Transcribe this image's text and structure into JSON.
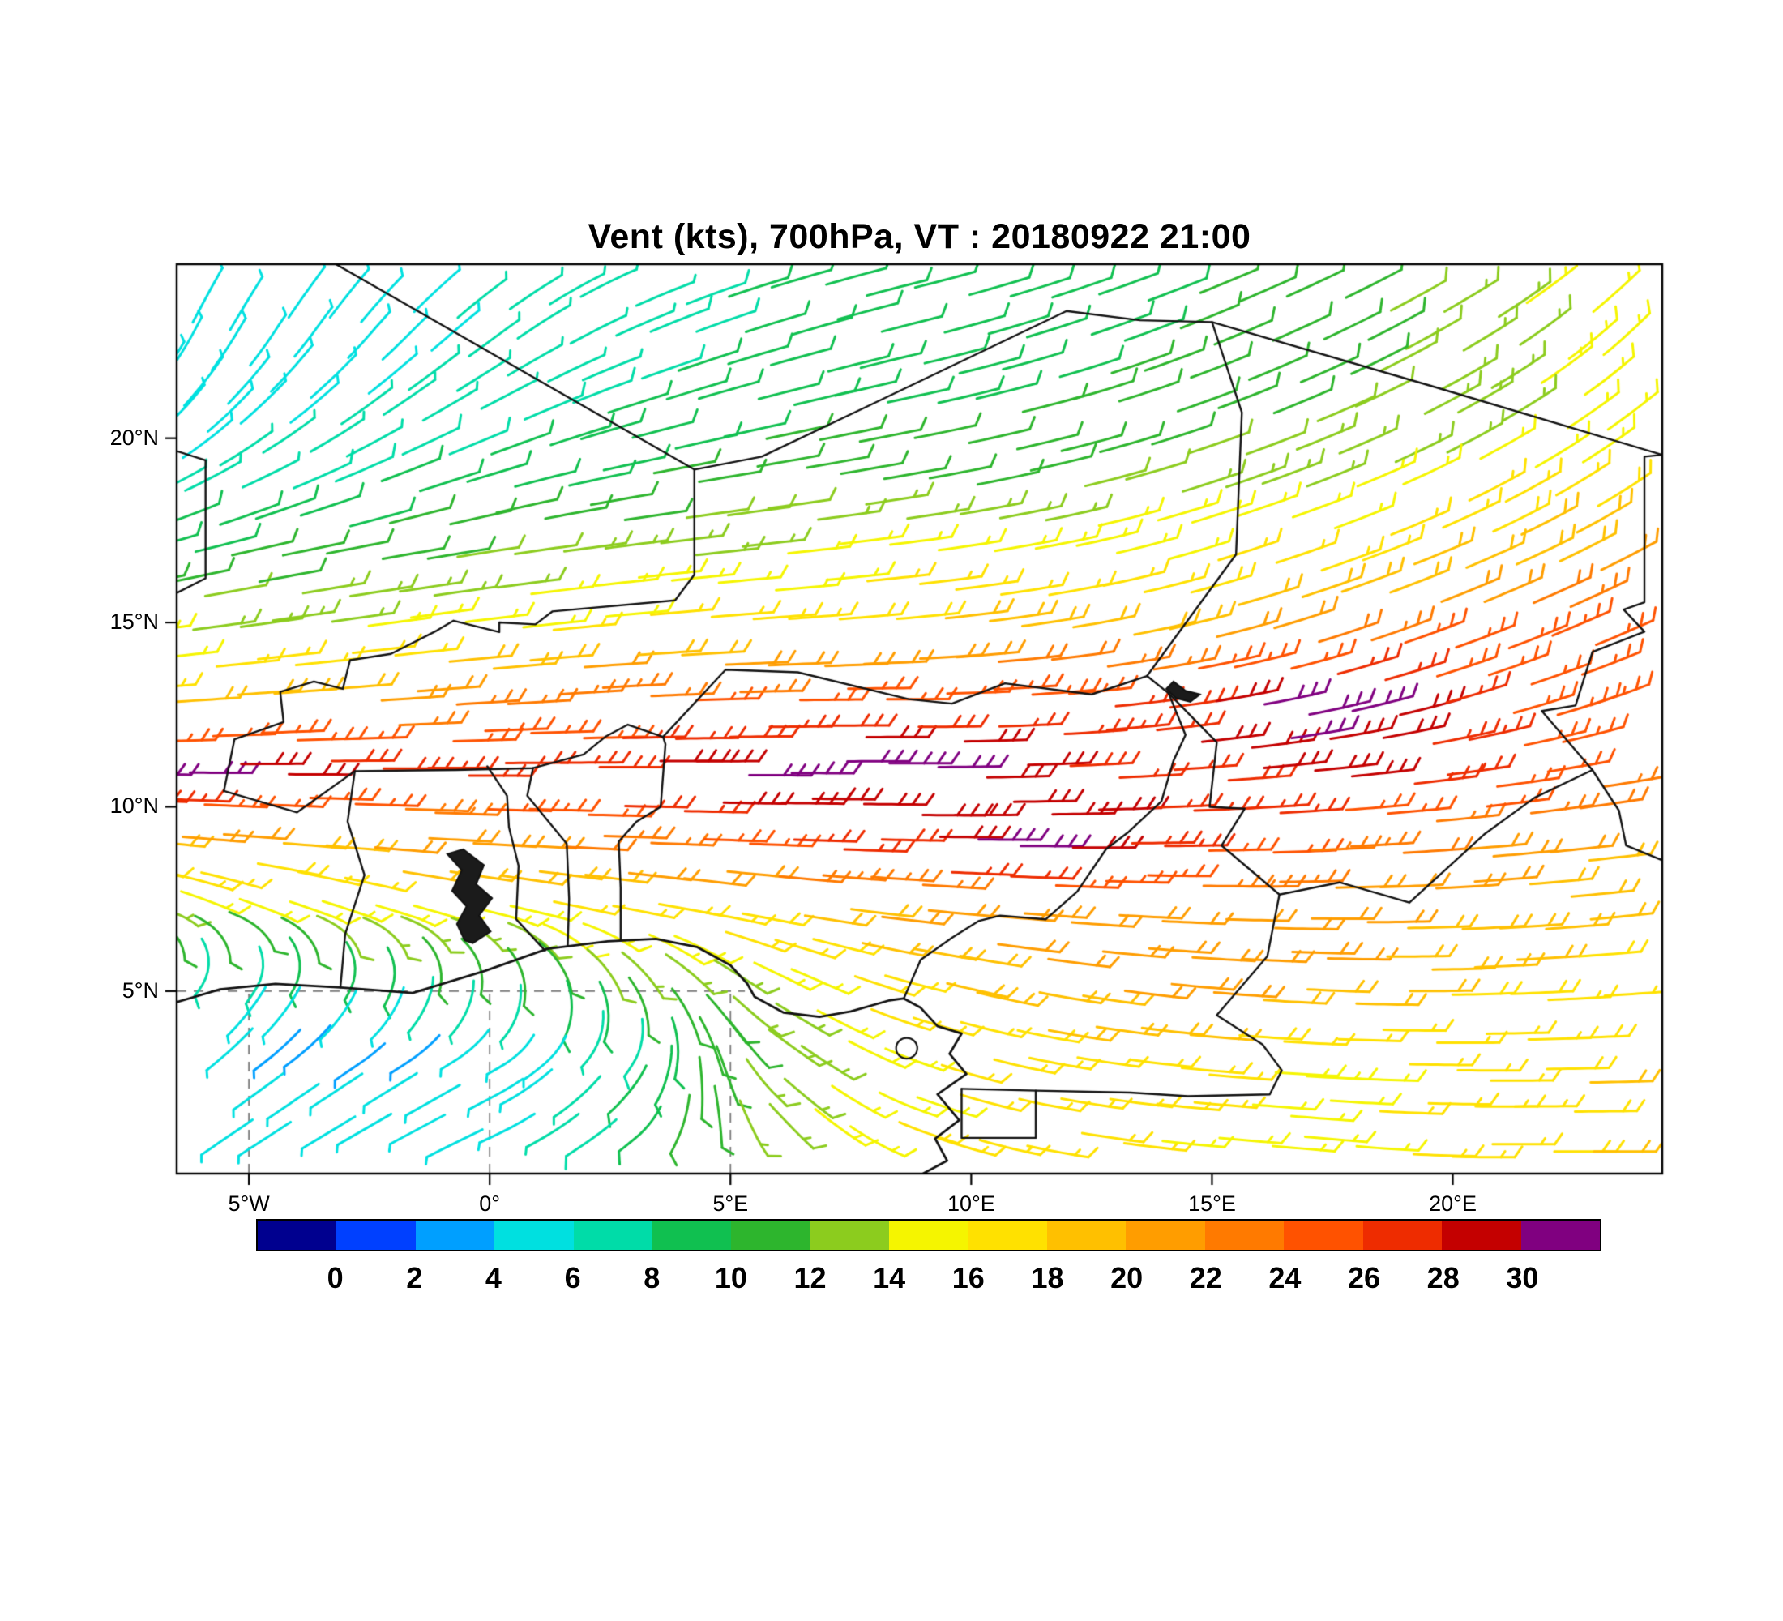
{
  "title": "Vent (kts), 700hPa, VT : 20180922  21:00",
  "chart_data": {
    "type": "wind-barb-map",
    "title": "Vent (kts), 700hPa, VT : 20180922  21:00",
    "parameter": "Vent",
    "units": "kts",
    "pressure_level": "700hPa",
    "valid_time": "20180922 21:00",
    "lon_range": [
      -6.5,
      24.35
    ],
    "lat_range": [
      0.05,
      24.72
    ],
    "x_axis": {
      "ticks": [
        {
          "label": "5°W",
          "lon": -5
        },
        {
          "label": "0°",
          "lon": 0
        },
        {
          "label": "5°E",
          "lon": 5
        },
        {
          "label": "10°E",
          "lon": 10
        },
        {
          "label": "15°E",
          "lon": 15
        },
        {
          "label": "20°E",
          "lon": 20
        }
      ]
    },
    "y_axis": {
      "ticks": [
        {
          "label": "5°N",
          "lat": 5
        },
        {
          "label": "10°N",
          "lat": 10
        },
        {
          "label": "15°N",
          "lat": 15
        },
        {
          "label": "20°N",
          "lat": 20
        }
      ]
    },
    "colorbar": {
      "units": "kts",
      "labels": [
        "0",
        "2",
        "4",
        "6",
        "8",
        "10",
        "12",
        "14",
        "16",
        "18",
        "20",
        "22",
        "24",
        "26",
        "28",
        "30"
      ],
      "colors": [
        "#00008F",
        "#0040FF",
        "#009FFF",
        "#00E0E0",
        "#00DCA8",
        "#10C050",
        "#2DB52D",
        "#8CCC1E",
        "#F5F500",
        "#FFE100",
        "#FFC000",
        "#FF9D00",
        "#FF7A00",
        "#FF5200",
        "#EE2C00",
        "#C40000",
        "#800080"
      ]
    },
    "wind_grid": {
      "lons": [
        -6,
        -3,
        0,
        3,
        6,
        9,
        12,
        15,
        18,
        21,
        24
      ],
      "lats": [
        1,
        3,
        5,
        7,
        9,
        11,
        13,
        15,
        17,
        19,
        21,
        23
      ],
      "speed_kts": [
        [
          5,
          5,
          6,
          9,
          13,
          16,
          16,
          16,
          15,
          17,
          18
        ],
        [
          4,
          3,
          5,
          8,
          12,
          15,
          17,
          17,
          16,
          16,
          18
        ],
        [
          8,
          10,
          11,
          13,
          14,
          17,
          20,
          21,
          20,
          18,
          17
        ],
        [
          14,
          15,
          16,
          16,
          18,
          20,
          22,
          22,
          21,
          20,
          18
        ],
        [
          20,
          20,
          21,
          23,
          25,
          27,
          31,
          27,
          24,
          22,
          20
        ],
        [
          31,
          30,
          27,
          27,
          31,
          32,
          29,
          27,
          29,
          27,
          24
        ],
        [
          18,
          20,
          22,
          24,
          24,
          25,
          26,
          27,
          32,
          27,
          25
        ],
        [
          14,
          14,
          15,
          16,
          17,
          18,
          19,
          20,
          22,
          25,
          26
        ],
        [
          10,
          11,
          12,
          13,
          14,
          15,
          15,
          16,
          17,
          19,
          21
        ],
        [
          7,
          8,
          9,
          10,
          11,
          12,
          12,
          13,
          14,
          16,
          18
        ],
        [
          5,
          6,
          7,
          8,
          9,
          10,
          10,
          11,
          12,
          13,
          15
        ],
        [
          4,
          5,
          6,
          7,
          8,
          9,
          9,
          10,
          11,
          13,
          15
        ]
      ],
      "dir_from_deg": [
        [
          235,
          240,
          245,
          230,
          140,
          110,
          100,
          95,
          95,
          90,
          90
        ],
        [
          230,
          235,
          240,
          210,
          130,
          110,
          100,
          95,
          92,
          90,
          88
        ],
        [
          215,
          205,
          185,
          150,
          120,
          105,
          100,
          95,
          92,
          88,
          86
        ],
        [
          115,
          110,
          105,
          102,
          100,
          96,
          94,
          92,
          90,
          87,
          84
        ],
        [
          95,
          94,
          93,
          92,
          92,
          91,
          90,
          89,
          87,
          85,
          83
        ],
        [
          90,
          90,
          90,
          90,
          90,
          90,
          88,
          86,
          84,
          82,
          80
        ],
        [
          86,
          86,
          86,
          87,
          89,
          90,
          86,
          81,
          76,
          73,
          70
        ],
        [
          82,
          82,
          83,
          85,
          86,
          85,
          81,
          76,
          71,
          68,
          66
        ],
        [
          76,
          79,
          81,
          83,
          84,
          83,
          79,
          73,
          70,
          66,
          62
        ],
        [
          62,
          67,
          73,
          79,
          81,
          80,
          77,
          72,
          68,
          62,
          56
        ],
        [
          42,
          52,
          62,
          72,
          76,
          78,
          75,
          70,
          66,
          60,
          52
        ],
        [
          28,
          38,
          52,
          66,
          73,
          76,
          72,
          68,
          64,
          58,
          46
        ]
      ]
    },
    "map_borders": [
      [
        [
          -3.3,
          24.8
        ],
        [
          4.25,
          19.15
        ],
        [
          5.65,
          19.5
        ],
        [
          7.9,
          20.9
        ],
        [
          11.98,
          23.45
        ],
        [
          13.5,
          23.2
        ],
        [
          15.0,
          23.15
        ],
        [
          19.6,
          21.4
        ],
        [
          24.35,
          19.55
        ]
      ],
      [
        [
          24.35,
          19.55
        ],
        [
          23.98,
          19.5
        ],
        [
          23.98,
          15.55
        ],
        [
          23.55,
          15.35
        ],
        [
          23.98,
          14.75
        ],
        [
          22.9,
          14.2
        ],
        [
          22.55,
          12.75
        ],
        [
          21.85,
          12.6
        ],
        [
          22.9,
          11.0
        ],
        [
          23.45,
          9.9
        ],
        [
          23.6,
          8.95
        ],
        [
          24.35,
          8.55
        ]
      ],
      [
        [
          15.0,
          23.15
        ],
        [
          15.62,
          20.7
        ],
        [
          15.5,
          16.85
        ],
        [
          13.65,
          13.55
        ]
      ],
      [
        [
          4.25,
          19.15
        ],
        [
          4.25,
          16.3
        ],
        [
          3.85,
          15.6
        ],
        [
          1.3,
          15.3
        ],
        [
          0.95,
          14.95
        ],
        [
          0.2,
          15.0
        ],
        [
          0.2,
          14.74
        ],
        [
          -0.75,
          15.05
        ],
        [
          -1.1,
          14.78
        ],
        [
          -2.05,
          14.15
        ],
        [
          -2.9,
          13.98
        ],
        [
          -3.05,
          13.2
        ],
        [
          -3.65,
          13.4
        ],
        [
          -4.35,
          13.12
        ],
        [
          -4.28,
          12.3
        ],
        [
          -5.3,
          11.83
        ],
        [
          -5.52,
          10.43
        ]
      ],
      [
        [
          -5.52,
          10.43
        ],
        [
          -4.0,
          9.85
        ],
        [
          -2.8,
          10.97
        ],
        [
          -0.7,
          11.0
        ],
        [
          0.9,
          11.05
        ],
        [
          1.95,
          11.42
        ],
        [
          2.4,
          11.9
        ],
        [
          2.87,
          12.23
        ],
        [
          3.6,
          11.9
        ]
      ],
      [
        [
          -3.1,
          5.1
        ],
        [
          -3.0,
          6.55
        ],
        [
          -2.6,
          8.15
        ],
        [
          -2.95,
          9.6
        ],
        [
          -2.8,
          10.97
        ]
      ],
      [
        [
          1.15,
          6.1
        ],
        [
          0.55,
          6.95
        ],
        [
          0.6,
          8.4
        ],
        [
          0.4,
          9.45
        ],
        [
          0.36,
          10.3
        ],
        [
          -0.05,
          11.1
        ]
      ],
      [
        [
          1.62,
          6.22
        ],
        [
          1.65,
          7.5
        ],
        [
          1.6,
          9.0
        ],
        [
          0.78,
          10.3
        ],
        [
          0.9,
          11.05
        ]
      ],
      [
        [
          2.72,
          6.37
        ],
        [
          2.72,
          7.8
        ],
        [
          2.68,
          9.06
        ],
        [
          3.05,
          9.6
        ],
        [
          3.55,
          10.0
        ],
        [
          3.65,
          11.7
        ],
        [
          3.6,
          11.9
        ]
      ],
      [
        [
          3.6,
          11.9
        ],
        [
          4.9,
          13.72
        ],
        [
          6.4,
          13.65
        ],
        [
          8.7,
          12.92
        ],
        [
          9.6,
          12.8
        ],
        [
          10.7,
          13.35
        ],
        [
          12.5,
          13.05
        ],
        [
          13.65,
          13.55
        ]
      ],
      [
        [
          13.65,
          13.55
        ],
        [
          14.1,
          13.08
        ],
        [
          14.45,
          11.95
        ],
        [
          14.2,
          11.25
        ],
        [
          13.95,
          10.15
        ],
        [
          13.25,
          9.3
        ],
        [
          12.8,
          8.85
        ],
        [
          12.2,
          7.7
        ],
        [
          11.55,
          6.95
        ],
        [
          10.6,
          7.05
        ],
        [
          10.15,
          6.9
        ],
        [
          9.6,
          6.45
        ],
        [
          8.95,
          5.85
        ],
        [
          8.6,
          4.8
        ]
      ],
      [
        [
          14.1,
          13.08
        ],
        [
          15.1,
          11.75
        ],
        [
          14.95,
          10.0
        ],
        [
          15.68,
          9.95
        ],
        [
          15.2,
          8.95
        ],
        [
          16.4,
          7.62
        ],
        [
          17.65,
          7.95
        ],
        [
          19.1,
          7.4
        ],
        [
          20.65,
          9.25
        ],
        [
          21.7,
          10.25
        ],
        [
          22.9,
          11.0
        ]
      ],
      [
        [
          16.4,
          7.62
        ],
        [
          16.15,
          5.95
        ],
        [
          15.1,
          4.35
        ],
        [
          16.05,
          3.55
        ],
        [
          16.45,
          2.85
        ],
        [
          16.2,
          2.2
        ],
        [
          14.5,
          2.15
        ],
        [
          13.3,
          2.25
        ],
        [
          11.35,
          2.3
        ],
        [
          9.8,
          2.35
        ]
      ],
      [
        [
          9.8,
          2.35
        ],
        [
          9.8,
          1.02
        ],
        [
          11.34,
          1.02
        ],
        [
          11.34,
          2.3
        ]
      ],
      [
        [
          -6.5,
          15.8
        ],
        [
          -5.9,
          16.2
        ],
        [
          -5.9,
          19.4
        ],
        [
          -6.5,
          19.65
        ]
      ]
    ],
    "coastline": [
      [
        -6.5,
        4.7
      ],
      [
        -5.6,
        5.05
      ],
      [
        -4.45,
        5.2
      ],
      [
        -3.1,
        5.1
      ],
      [
        -1.6,
        4.95
      ],
      [
        -0.1,
        5.55
      ],
      [
        1.2,
        6.15
      ],
      [
        2.45,
        6.35
      ],
      [
        3.45,
        6.42
      ],
      [
        4.3,
        6.2
      ],
      [
        5.0,
        5.7
      ],
      [
        5.35,
        5.2
      ],
      [
        5.5,
        4.85
      ],
      [
        6.1,
        4.42
      ],
      [
        6.85,
        4.3
      ],
      [
        7.5,
        4.45
      ],
      [
        8.3,
        4.75
      ],
      [
        8.6,
        4.8
      ],
      [
        8.95,
        4.55
      ],
      [
        9.3,
        4.05
      ],
      [
        9.8,
        3.85
      ],
      [
        9.55,
        3.3
      ],
      [
        9.9,
        2.75
      ],
      [
        9.3,
        2.2
      ],
      [
        9.75,
        1.5
      ],
      [
        9.25,
        1.0
      ],
      [
        9.5,
        0.4
      ],
      [
        9.0,
        0.05
      ]
    ],
    "lakes": {
      "volta": [
        [
          -0.35,
          6.3
        ],
        [
          0.02,
          6.62
        ],
        [
          -0.22,
          7.05
        ],
        [
          0.05,
          7.52
        ],
        [
          -0.28,
          7.9
        ],
        [
          -0.12,
          8.42
        ],
        [
          -0.55,
          8.85
        ],
        [
          -0.88,
          8.72
        ],
        [
          -0.58,
          8.28
        ],
        [
          -0.78,
          7.72
        ],
        [
          -0.48,
          7.3
        ],
        [
          -0.68,
          6.82
        ],
        [
          -0.52,
          6.38
        ]
      ],
      "chad": [
        [
          14.2,
          13.4
        ],
        [
          14.45,
          13.15
        ],
        [
          14.75,
          13.05
        ],
        [
          14.55,
          12.85
        ],
        [
          14.25,
          12.95
        ],
        [
          14.05,
          13.2
        ]
      ]
    },
    "islands": {
      "bioko": {
        "lon": 8.66,
        "lat": 3.45,
        "rlon": 0.22,
        "rlat": 0.28
      }
    },
    "dashed_gridlines": {
      "horizontal": [
        {
          "lat": 5,
          "lon_from": -6.5,
          "lon_to": 5.3
        }
      ],
      "vertical": [
        {
          "lon": -5,
          "lat_from": 0.05,
          "lat_to": 5
        },
        {
          "lon": 0,
          "lat_from": 0.05,
          "lat_to": 5
        },
        {
          "lon": 5,
          "lat_from": 0.05,
          "lat_to": 5
        }
      ]
    }
  }
}
